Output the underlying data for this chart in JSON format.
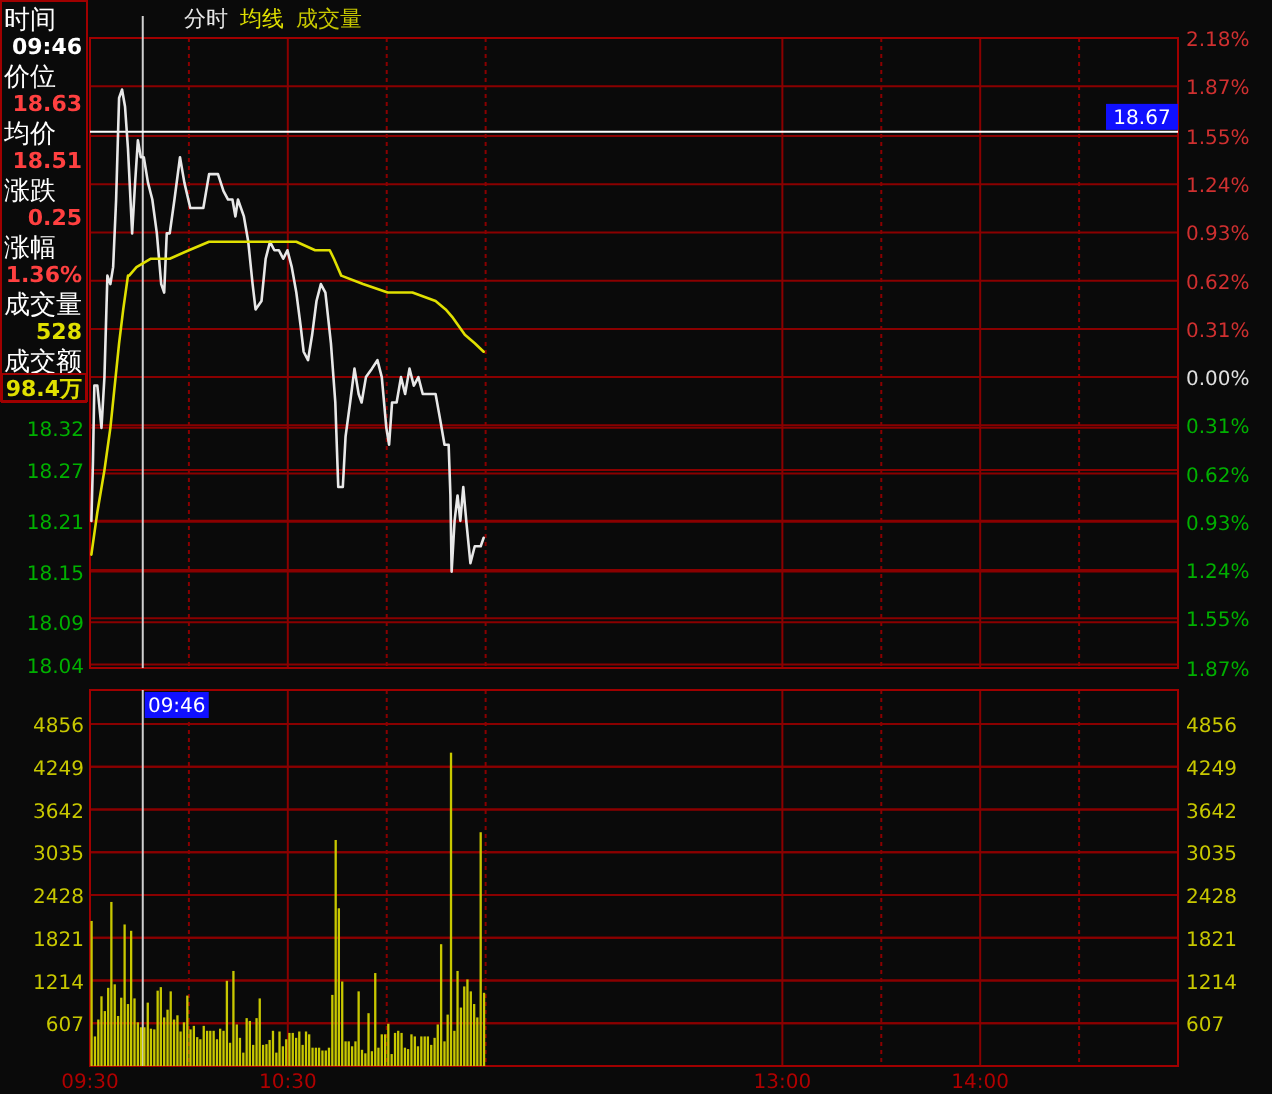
{
  "chart_data": [
    {
      "type": "other",
      "annotations": [
        "时间",
        "09:46",
        "价位",
        "18.63",
        "均价",
        "18.51",
        "涨跌",
        "0.25",
        "涨幅",
        "1.36%",
        "成交量",
        "528",
        "成交额",
        "98.4万"
      ]
    },
    {
      "type": "line",
      "legend": "top left",
      "grid": true,
      "tick_labels": "y",
      "xlim": [
        9.5,
        15
      ],
      "ylim": [
        18.036,
        18.781
      ],
      "yticks": [
        18.04,
        18.09,
        18.15,
        18.21,
        18.27,
        18.32
      ],
      "y2lim": [
        -1.87,
        2.18
      ],
      "y2ticks": [
        {
          "value": -1.87,
          "label": "1.87%"
        },
        {
          "value": -1.55,
          "label": "1.55%"
        },
        {
          "value": -1.24,
          "label": "1.24%"
        },
        {
          "value": -0.93,
          "label": "0.93%"
        },
        {
          "value": -0.62,
          "label": "0.62%"
        },
        {
          "value": -0.31,
          "label": "0.31%"
        },
        {
          "value": 0,
          "label": "0.00%"
        },
        {
          "value": 0.31,
          "label": "0.31%"
        },
        {
          "value": 0.62,
          "label": "0.62%"
        },
        {
          "value": 0.93,
          "label": "0.93%"
        },
        {
          "value": 1.24,
          "label": "1.24%"
        },
        {
          "value": 1.55,
          "label": "1.55%"
        },
        {
          "value": 1.87,
          "label": "1.87%"
        },
        {
          "value": 2.18,
          "label": "2.18%"
        }
      ],
      "ref_lines": [
        {
          "axis": "x",
          "value": 9.7667,
          "color": "#d0d0d0"
        },
        {
          "axis": "y",
          "value": 18.67,
          "label": "18.67",
          "color": "#ffffff"
        }
      ],
      "series": [
        {
          "name": "分时",
          "color": "#e8e8e8",
          "x": [
            9.507,
            9.515,
            9.522,
            9.537,
            9.558,
            9.573,
            9.588,
            9.603,
            9.617,
            9.632,
            9.647,
            9.662,
            9.677,
            9.692,
            9.713,
            9.728,
            9.742,
            9.757,
            9.772,
            9.793,
            9.815,
            9.838,
            9.86,
            9.875,
            9.888,
            9.903,
            9.927,
            9.955,
            9.977,
            10.007,
            10.037,
            10.073,
            10.102,
            10.123,
            10.147,
            10.175,
            10.198,
            10.22,
            10.235,
            10.248,
            10.278,
            10.3,
            10.322,
            10.337,
            10.367,
            10.388,
            10.41,
            10.432,
            10.455,
            10.477,
            10.498,
            10.52,
            10.543,
            10.565,
            10.58,
            10.602,
            10.623,
            10.645,
            10.667,
            10.69,
            10.718,
            10.74,
            10.755,
            10.778,
            10.792,
            10.815,
            10.837,
            10.858,
            10.873,
            10.895,
            10.925,
            10.953,
            10.975,
            10.998,
            11.012,
            11.027,
            11.05,
            11.072,
            11.093,
            11.115,
            11.137,
            11.16,
            11.182,
            11.21,
            11.247,
            11.27,
            11.292,
            11.313,
            11.322,
            11.328,
            11.343,
            11.358,
            11.372,
            11.387,
            11.402,
            11.423,
            11.445,
            11.46,
            11.475,
            11.49
          ],
          "values": [
            18.21,
            18.28,
            18.37,
            18.37,
            18.32,
            18.38,
            18.5,
            18.49,
            18.51,
            18.59,
            18.71,
            18.72,
            18.7,
            18.65,
            18.55,
            18.61,
            18.66,
            18.64,
            18.64,
            18.61,
            18.59,
            18.55,
            18.49,
            18.48,
            18.55,
            18.55,
            18.59,
            18.64,
            18.61,
            18.58,
            18.58,
            18.58,
            18.62,
            18.62,
            18.62,
            18.6,
            18.59,
            18.59,
            18.57,
            18.59,
            18.57,
            18.54,
            18.49,
            18.46,
            18.47,
            18.52,
            18.54,
            18.53,
            18.53,
            18.52,
            18.53,
            18.51,
            18.48,
            18.44,
            18.41,
            18.4,
            18.43,
            18.47,
            18.49,
            18.48,
            18.42,
            18.35,
            18.25,
            18.25,
            18.31,
            18.35,
            18.39,
            18.36,
            18.35,
            18.38,
            18.39,
            18.4,
            18.38,
            18.32,
            18.3,
            18.35,
            18.35,
            18.38,
            18.36,
            18.39,
            18.37,
            18.38,
            18.36,
            18.36,
            18.36,
            18.33,
            18.3,
            18.3,
            18.24,
            18.15,
            18.21,
            18.24,
            18.21,
            18.25,
            18.21,
            18.16,
            18.18,
            18.18,
            18.18,
            18.19
          ]
        },
        {
          "name": "均线",
          "color": "#e0e000",
          "x": [
            9.507,
            9.537,
            9.573,
            9.603,
            9.625,
            9.647,
            9.668,
            9.692,
            9.698,
            9.735,
            9.808,
            9.903,
            10.0,
            10.102,
            10.22,
            10.272,
            10.322,
            10.418,
            10.543,
            10.638,
            10.712,
            10.733,
            10.77,
            10.88,
            11.005,
            11.13,
            11.247,
            11.298,
            11.335,
            11.395,
            11.445,
            11.49
          ],
          "values": [
            18.17,
            18.22,
            18.27,
            18.32,
            18.37,
            18.42,
            18.46,
            18.5,
            18.5,
            18.51,
            18.52,
            18.52,
            18.53,
            18.54,
            18.54,
            18.54,
            18.54,
            18.54,
            18.54,
            18.53,
            18.53,
            18.52,
            18.5,
            18.49,
            18.48,
            18.48,
            18.47,
            18.46,
            18.45,
            18.43,
            18.42,
            18.41
          ]
        }
      ]
    },
    {
      "type": "bar",
      "legend": "top left",
      "grid": true,
      "xlim": [
        9.5,
        15
      ],
      "xticks": [
        {
          "value": 9.5,
          "label": "09:30"
        },
        {
          "value": 10,
          "label": null
        },
        {
          "value": 10.5,
          "label": "10:30"
        },
        {
          "value": 11,
          "label": null
        },
        {
          "value": 11.5,
          "label": null
        },
        {
          "value": 13,
          "label": "13:00"
        },
        {
          "value": 13.5,
          "label": null
        },
        {
          "value": 14,
          "label": "14:00"
        },
        {
          "value": 14.5,
          "label": null
        }
      ],
      "ylim": [
        0,
        5340
      ],
      "yticks": [
        607,
        1214,
        1821,
        2428,
        3035,
        3642,
        4249,
        4856
      ],
      "y2lim": [
        0,
        5340
      ],
      "y2ticks": [
        607,
        1214,
        1821,
        2428,
        3035,
        3642,
        4249,
        4856
      ],
      "ref_lines": [
        {
          "axis": "x",
          "value": 9.7667,
          "color": "#d0d0d0"
        }
      ],
      "annotations": [
        "09:46"
      ],
      "series": [
        {
          "name": "成交量",
          "color": "#c8c800",
          "x": [
            9.508,
            9.525,
            9.542,
            9.558,
            9.575,
            9.592,
            9.608,
            9.625,
            9.642,
            9.658,
            9.675,
            9.692,
            9.708,
            9.725,
            9.742,
            9.758,
            9.775,
            9.792,
            9.808,
            9.825,
            9.842,
            9.858,
            9.875,
            9.892,
            9.908,
            9.925,
            9.942,
            9.958,
            9.975,
            9.992,
            10.008,
            10.025,
            10.042,
            10.058,
            10.075,
            10.092,
            10.108,
            10.125,
            10.142,
            10.158,
            10.175,
            10.192,
            10.208,
            10.225,
            10.242,
            10.258,
            10.275,
            10.292,
            10.308,
            10.325,
            10.342,
            10.358,
            10.375,
            10.392,
            10.408,
            10.425,
            10.442,
            10.458,
            10.475,
            10.492,
            10.508,
            10.525,
            10.542,
            10.558,
            10.575,
            10.592,
            10.608,
            10.625,
            10.642,
            10.658,
            10.675,
            10.692,
            10.708,
            10.725,
            10.742,
            10.758,
            10.775,
            10.792,
            10.808,
            10.825,
            10.842,
            10.858,
            10.875,
            10.892,
            10.908,
            10.925,
            10.942,
            10.958,
            10.975,
            10.992,
            11.008,
            11.025,
            11.042,
            11.058,
            11.075,
            11.092,
            11.108,
            11.125,
            11.142,
            11.158,
            11.175,
            11.192,
            11.208,
            11.225,
            11.242,
            11.258,
            11.275,
            11.292,
            11.308,
            11.325,
            11.342,
            11.358,
            11.375,
            11.392,
            11.408,
            11.425,
            11.442,
            11.458,
            11.475,
            11.492
          ],
          "values": [
            2060,
            420,
            660,
            990,
            780,
            1110,
            2330,
            1160,
            710,
            970,
            2010,
            880,
            1920,
            960,
            620,
            550,
            550,
            900,
            530,
            520,
            1070,
            1120,
            690,
            800,
            1060,
            660,
            720,
            490,
            620,
            1000,
            520,
            570,
            410,
            380,
            570,
            500,
            500,
            500,
            380,
            530,
            500,
            1210,
            330,
            1350,
            590,
            400,
            190,
            680,
            640,
            300,
            680,
            960,
            300,
            310,
            370,
            500,
            190,
            490,
            280,
            380,
            470,
            470,
            400,
            490,
            300,
            490,
            450,
            260,
            260,
            260,
            220,
            220,
            260,
            1010,
            3210,
            2240,
            1200,
            350,
            350,
            280,
            350,
            1060,
            230,
            180,
            750,
            210,
            1320,
            260,
            450,
            450,
            600,
            170,
            470,
            500,
            470,
            260,
            240,
            450,
            420,
            280,
            420,
            420,
            420,
            300,
            400,
            590,
            1730,
            350,
            730,
            4450,
            500,
            1350,
            830,
            1130,
            1230,
            1060,
            880,
            690,
            3320,
            1040
          ]
        }
      ]
    }
  ]
}
